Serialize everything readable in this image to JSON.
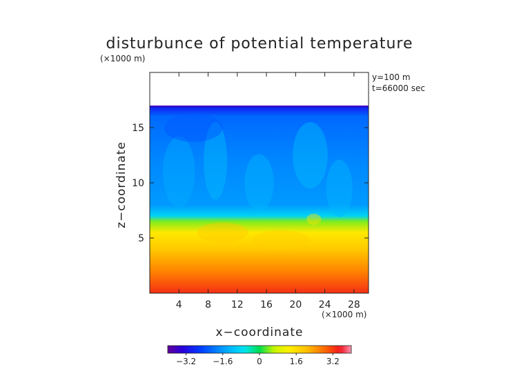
{
  "chart_data": {
    "type": "heatmap",
    "title": "disturbunce of potential temperature",
    "xlabel": "x−coordinate",
    "ylabel": "z−coordinate",
    "x_unit": "(×1000 m)",
    "y_unit": "(×1000 m)",
    "annotations": [
      "y=100 m",
      "t=66000 sec"
    ],
    "xlim": [
      0,
      30
    ],
    "ylim": [
      0,
      20
    ],
    "xticks": [
      4,
      8,
      12,
      16,
      20,
      24,
      28
    ],
    "xtick_labels": [
      "4",
      "8",
      "12",
      "16",
      "20",
      "24",
      "28"
    ],
    "yticks": [
      5,
      10,
      15
    ],
    "ytick_labels": [
      "5",
      "10",
      "15"
    ],
    "colorbar": {
      "min": -4.0,
      "max": 4.0,
      "ticks": [
        -3.2,
        -1.6,
        0,
        1.6,
        3.2
      ],
      "tick_labels": [
        "−3.2",
        "−1.6",
        "0",
        "1.6",
        "3.2"
      ]
    },
    "field_top_z": 17.0,
    "field_profile": [
      {
        "z": 0,
        "value": 3.3
      },
      {
        "z": 2,
        "value": 2.6
      },
      {
        "z": 4,
        "value": 1.9
      },
      {
        "z": 5.5,
        "value": 1.4
      },
      {
        "z": 6.5,
        "value": 0.4
      },
      {
        "z": 7.0,
        "value": -0.9
      },
      {
        "z": 8,
        "value": -1.6
      },
      {
        "z": 12,
        "value": -1.8
      },
      {
        "z": 16,
        "value": -2.1
      },
      {
        "z": 16.8,
        "value": -2.9
      },
      {
        "z": 17.0,
        "value": -3.8
      }
    ],
    "grid": false,
    "legend": "bottom"
  }
}
